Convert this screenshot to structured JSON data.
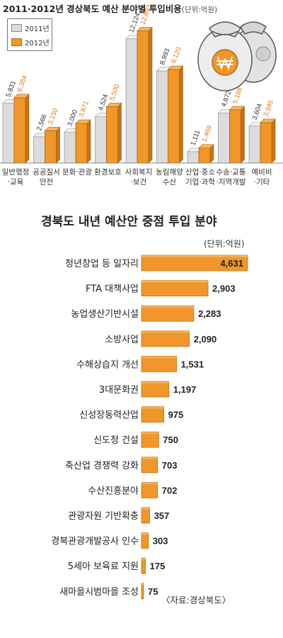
{
  "colors": {
    "y2011": "#dcdcdc",
    "y2012": "#f0962a",
    "h_bar": "#f0962a",
    "h_bar_dark": "#c4731a"
  },
  "chart_data": [
    {
      "type": "bar",
      "title": "2011·2012년 경상북도 예산 분야별 투입비용",
      "unit": "(단위:억원)",
      "categories": [
        [
          "일반행정",
          "·교육"
        ],
        [
          "공공질서",
          "안전"
        ],
        [
          "문화·관광"
        ],
        [
          "환경보호"
        ],
        [
          "사회복지",
          "·보건"
        ],
        [
          "농림해양",
          "수산"
        ],
        [
          "산업·중소",
          "기업·과학"
        ],
        [
          "수송·교통",
          "·지역개발"
        ],
        [
          "예비비",
          "·기타"
        ]
      ],
      "series": [
        {
          "name": "2011년",
          "values": [
            5831,
            2566,
            3000,
            4524,
            12124,
            8993,
            1111,
            4872,
            3604
          ],
          "labels": [
            "5,831",
            "2,566",
            "3,000",
            "4,524",
            "12,124",
            "8,993",
            "1,111",
            "4,872",
            "3,604"
          ]
        },
        {
          "name": "2012년",
          "values": [
            6364,
            3150,
            3871,
            5500,
            12893,
            9120,
            1469,
            5188,
            3945
          ],
          "labels": [
            "6,364",
            "3,150",
            "3,871",
            "5,500",
            "12,893",
            "9,120",
            "1,469",
            "5,188",
            "3,945"
          ]
        }
      ],
      "ylim": [
        0,
        13000
      ],
      "legend": "top-left"
    },
    {
      "type": "bar",
      "orientation": "horizontal",
      "title": "경북도 내년 예산안 중점 투입 분야",
      "unit": "(단위:억원)",
      "source": "〈자료:경상북도〉",
      "categories": [
        "청년창업 등 일자리",
        "FTA 대책사업",
        "농업생산기반시설",
        "소방사업",
        "수해상습지 개선",
        "3대문화권",
        "신성장동력산업",
        "신도청 건설",
        "축산업 경쟁력 강화",
        "수산진흥분야",
        "관광자원 기반확충",
        "경북관광개발공사 인수",
        "5세아 보육료 지원",
        "새마을시범마을 조성"
      ],
      "values": [
        4631,
        2903,
        2283,
        2090,
        1531,
        1197,
        975,
        750,
        703,
        702,
        357,
        303,
        175,
        75
      ],
      "labels": [
        "4,631",
        "2,903",
        "2,283",
        "2,090",
        "1,531",
        "1,197",
        "975",
        "750",
        "703",
        "702",
        "357",
        "303",
        "175",
        "75"
      ],
      "xlim": [
        0,
        4631
      ]
    }
  ]
}
